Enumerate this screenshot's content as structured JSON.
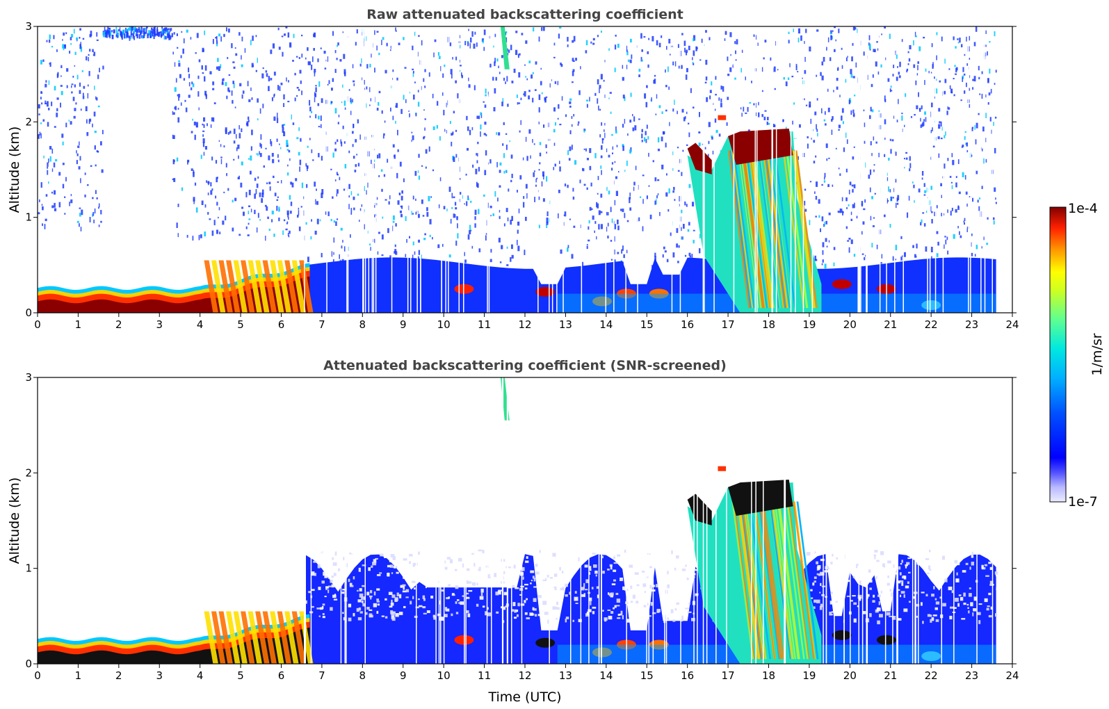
{
  "chart_data": [
    {
      "type": "heatmap",
      "title": "Raw attenuated backscattering coefficient",
      "xlabel": "",
      "ylabel": "Altitude (km)",
      "xlim": [
        0,
        24
      ],
      "ylim": [
        0,
        3
      ],
      "x_ticks": [
        "0",
        "1",
        "2",
        "3",
        "4",
        "5",
        "6",
        "7",
        "8",
        "9",
        "10",
        "11",
        "12",
        "13",
        "14",
        "15",
        "16",
        "17",
        "18",
        "19",
        "20",
        "21",
        "22",
        "23",
        "24"
      ],
      "y_ticks": [
        "0",
        "1",
        "2",
        "3"
      ],
      "features": [
        {
          "name": "surface layer",
          "t_start": 0,
          "t_end": 6.6,
          "alt_top_km": 0.6,
          "level": "high"
        },
        {
          "name": "boundary layer",
          "t_start": 6.6,
          "t_end": 23.6,
          "alt_top_km": 0.6,
          "level": "low"
        },
        {
          "name": "cloud",
          "t_start": 16,
          "t_end": 16.6,
          "alt_bottom_km": 1.45,
          "alt_top_km": 1.75,
          "level": "very high"
        },
        {
          "name": "cloud",
          "t_start": 17,
          "t_end": 18.6,
          "alt_bottom_km": 1.5,
          "alt_top_km": 1.95,
          "level": "very high"
        },
        {
          "name": "precipitation",
          "t_start": 16,
          "t_end": 19.3,
          "alt_bottom_km": 0,
          "alt_top_km": 1.8,
          "level": "medium"
        },
        {
          "name": "plume",
          "t_start": 11.35,
          "t_end": 11.6,
          "alt_bottom_km": 2.55,
          "alt_top_km": 3.0,
          "level": "medium"
        }
      ]
    },
    {
      "type": "heatmap",
      "title": "Attenuated backscattering coefficient (SNR-screened)",
      "xlabel": "Time (UTC)",
      "ylabel": "Altitude (km)",
      "xlim": [
        0,
        24
      ],
      "ylim": [
        0,
        3
      ],
      "x_ticks": [
        "0",
        "1",
        "2",
        "3",
        "4",
        "5",
        "6",
        "7",
        "8",
        "9",
        "10",
        "11",
        "12",
        "13",
        "14",
        "15",
        "16",
        "17",
        "18",
        "19",
        "20",
        "21",
        "22",
        "23",
        "24"
      ],
      "y_ticks": [
        "0",
        "1",
        "2",
        "3"
      ],
      "features": [
        {
          "name": "surface layer",
          "t_start": 0,
          "t_end": 6.6,
          "alt_top_km": 0.6,
          "level": "high"
        },
        {
          "name": "boundary layer",
          "t_start": 6.6,
          "t_end": 23.6,
          "alt_top_km": 1.2,
          "level": "low"
        },
        {
          "name": "cloud",
          "t_start": 16,
          "t_end": 16.6,
          "alt_bottom_km": 1.45,
          "alt_top_km": 1.75,
          "level": "saturated"
        },
        {
          "name": "cloud",
          "t_start": 17,
          "t_end": 18.6,
          "alt_bottom_km": 1.5,
          "alt_top_km": 1.95,
          "level": "saturated"
        },
        {
          "name": "precipitation",
          "t_start": 16,
          "t_end": 19.3,
          "alt_bottom_km": 0,
          "alt_top_km": 1.8,
          "level": "medium"
        },
        {
          "name": "plume",
          "t_start": 11.35,
          "t_end": 11.6,
          "alt_bottom_km": 2.55,
          "alt_top_km": 3.0,
          "level": "medium"
        }
      ]
    }
  ],
  "colorbar": {
    "label": "1/m/sr",
    "min_label": "1e-7",
    "max_label": "1e-4",
    "scale": "log",
    "colors": [
      "#e8e8ff",
      "#c8c8ff",
      "#8080ff",
      "#0000ff",
      "#0040ff",
      "#0080ff",
      "#00c0ff",
      "#00e8e0",
      "#40f0a0",
      "#a0ff40",
      "#ffff00",
      "#ffc000",
      "#ff8000",
      "#ff2000",
      "#c00000",
      "#800000"
    ]
  }
}
